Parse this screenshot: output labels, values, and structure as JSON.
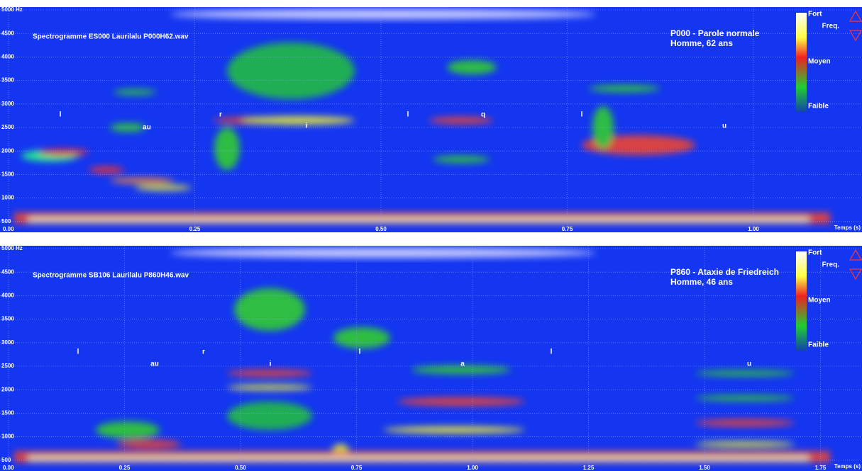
{
  "panels": [
    {
      "title": "Spectrogramme ES000 Laurilalu P000H62.wav",
      "speaker": "P000 -  Parole normale",
      "info": "Homme, 62 ans",
      "freq_ticks": [
        "5000 Hz",
        "4500",
        "4000",
        "3500",
        "3000",
        "2500",
        "2000",
        "1500",
        "1000",
        "500"
      ],
      "time_ticks": [
        "0.00",
        "0.25",
        "0.50",
        "0.75",
        "1.00"
      ],
      "time_unit": "Temps (s)",
      "phonemes": [
        "l",
        "au",
        "r",
        "i",
        "l",
        "q",
        "l",
        "u"
      ],
      "legend": {
        "high": "Fort",
        "mid": "Moyen",
        "low": "Faible",
        "freq": "Freq."
      }
    },
    {
      "title": "Spectrogramme SB106 Laurilalu P860H46.wav",
      "speaker": "P860 -  Ataxie de Friedreich",
      "info": "Homme, 46 ans",
      "freq_ticks": [
        "5000 Hz",
        "4500",
        "4000",
        "3500",
        "3000",
        "2500",
        "2000",
        "1500",
        "1000",
        "500"
      ],
      "time_ticks": [
        "0.00",
        "0.25",
        "0.50",
        "0.75",
        "1.00",
        "1.25",
        "1.50",
        "1.75"
      ],
      "time_unit": "Temps (s)",
      "phonemes": [
        "l",
        "au",
        "r",
        "i",
        "l",
        "a",
        "l",
        "u"
      ],
      "legend": {
        "high": "Fort",
        "mid": "Moyen",
        "low": "Faible",
        "freq": "Freq."
      }
    }
  ]
}
